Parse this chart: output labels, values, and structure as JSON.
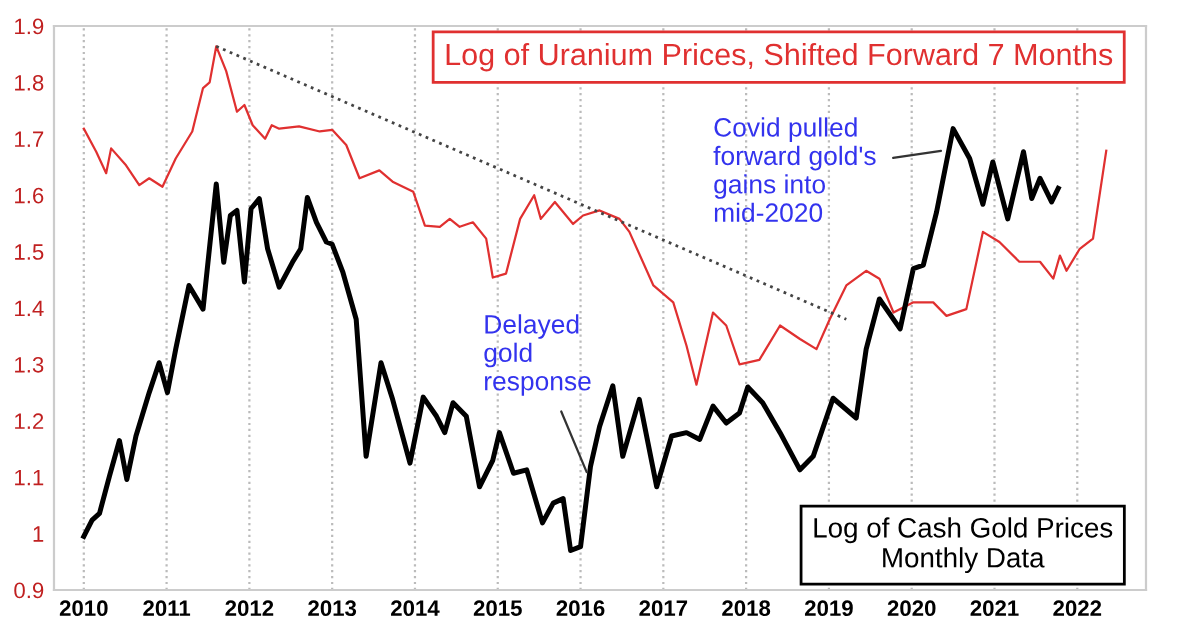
{
  "chart_data": {
    "type": "line",
    "series": [
      {
        "name": "Log of Uranium Prices, Shifted Forward 7 Months",
        "color": "#e03030",
        "x": [
          2010.0,
          2010.15,
          2010.27,
          2010.33,
          2010.51,
          2010.67,
          2010.79,
          2010.95,
          2011.11,
          2011.31,
          2011.44,
          2011.52,
          2011.6,
          2011.72,
          2011.85,
          2011.94,
          2012.04,
          2012.19,
          2012.27,
          2012.36,
          2012.6,
          2012.85,
          2013.0,
          2013.17,
          2013.33,
          2013.57,
          2013.73,
          2013.98,
          2014.12,
          2014.3,
          2014.42,
          2014.54,
          2014.7,
          2014.86,
          2014.94,
          2015.1,
          2015.27,
          2015.44,
          2015.52,
          2015.69,
          2015.91,
          2016.03,
          2016.23,
          2016.47,
          2016.59,
          2016.88,
          2017.12,
          2017.28,
          2017.4,
          2017.6,
          2017.76,
          2017.92,
          2018.16,
          2018.41,
          2018.65,
          2018.85,
          2019.01,
          2019.21,
          2019.45,
          2019.61,
          2019.78,
          2020.02,
          2020.26,
          2020.42,
          2020.66,
          2020.86,
          2021.06,
          2021.3,
          2021.55,
          2021.71,
          2021.79,
          2021.87,
          2022.03,
          2022.19,
          2022.35
        ],
        "values": [
          1.718,
          1.677,
          1.639,
          1.683,
          1.653,
          1.618,
          1.63,
          1.615,
          1.665,
          1.713,
          1.79,
          1.8,
          1.864,
          1.82,
          1.748,
          1.76,
          1.724,
          1.7,
          1.724,
          1.718,
          1.722,
          1.713,
          1.716,
          1.689,
          1.63,
          1.644,
          1.624,
          1.606,
          1.546,
          1.544,
          1.558,
          1.544,
          1.552,
          1.523,
          1.454,
          1.461,
          1.558,
          1.6,
          1.558,
          1.588,
          1.549,
          1.564,
          1.573,
          1.558,
          1.535,
          1.44,
          1.41,
          1.333,
          1.264,
          1.392,
          1.369,
          1.3,
          1.308,
          1.369,
          1.345,
          1.327,
          1.38,
          1.44,
          1.466,
          1.452,
          1.392,
          1.41,
          1.41,
          1.386,
          1.398,
          1.535,
          1.517,
          1.482,
          1.482,
          1.452,
          1.493,
          1.466,
          1.505,
          1.523,
          1.679
        ]
      },
      {
        "name": "Log of Cash Gold Prices",
        "color": "#000000",
        "x": [
          2010.0,
          2010.1,
          2010.19,
          2010.31,
          2010.43,
          2010.52,
          2010.63,
          2010.79,
          2010.91,
          2011.01,
          2011.11,
          2011.27,
          2011.44,
          2011.6,
          2011.69,
          2011.77,
          2011.85,
          2011.94,
          2012.02,
          2012.12,
          2012.22,
          2012.36,
          2012.52,
          2012.62,
          2012.7,
          2012.81,
          2012.93,
          2013.0,
          2013.13,
          2013.29,
          2013.41,
          2013.59,
          2013.73,
          2013.94,
          2014.1,
          2014.26,
          2014.36,
          2014.46,
          2014.62,
          2014.78,
          2014.94,
          2015.02,
          2015.19,
          2015.35,
          2015.54,
          2015.67,
          2015.79,
          2015.88,
          2016.0,
          2016.12,
          2016.23,
          2016.39,
          2016.51,
          2016.71,
          2016.92,
          2017.1,
          2017.28,
          2017.44,
          2017.6,
          2017.76,
          2017.92,
          2018.02,
          2018.2,
          2018.41,
          2018.65,
          2018.81,
          2019.05,
          2019.33,
          2019.45,
          2019.61,
          2019.86,
          2020.02,
          2020.14,
          2020.3,
          2020.5,
          2020.7,
          2020.86,
          2020.98,
          2021.16,
          2021.35,
          2021.45,
          2021.55,
          2021.69,
          2021.77
        ],
        "values": [
          0.995,
          1.024,
          1.036,
          1.102,
          1.165,
          1.096,
          1.173,
          1.25,
          1.303,
          1.25,
          1.327,
          1.44,
          1.398,
          1.62,
          1.481,
          1.564,
          1.573,
          1.446,
          1.576,
          1.594,
          1.505,
          1.437,
          1.481,
          1.505,
          1.596,
          1.552,
          1.517,
          1.513,
          1.463,
          1.38,
          1.137,
          1.303,
          1.238,
          1.125,
          1.242,
          1.208,
          1.179,
          1.232,
          1.208,
          1.083,
          1.13,
          1.179,
          1.107,
          1.113,
          1.019,
          1.054,
          1.062,
          0.97,
          0.977,
          1.119,
          1.19,
          1.262,
          1.137,
          1.238,
          1.083,
          1.173,
          1.179,
          1.167,
          1.226,
          1.196,
          1.214,
          1.26,
          1.232,
          1.179,
          1.113,
          1.137,
          1.24,
          1.205,
          1.327,
          1.416,
          1.363,
          1.47,
          1.476,
          1.57,
          1.718,
          1.665,
          1.584,
          1.659,
          1.558,
          1.677,
          1.594,
          1.63,
          1.588,
          1.612
        ]
      },
      {
        "color": "#444444",
        "line_style": "dotted",
        "x": [
          2011.6,
          2019.21
        ],
        "values": [
          1.864,
          1.38
        ]
      }
    ],
    "xlim": [
      2009.64,
      2022.83
    ],
    "ylim": [
      0.9,
      1.9
    ],
    "xticks": [
      2010,
      2011,
      2012,
      2013,
      2014,
      2015,
      2016,
      2017,
      2018,
      2019,
      2020,
      2021,
      2022
    ],
    "yticks": [
      0.9,
      1,
      1.1,
      1.2,
      1.3,
      1.4,
      1.5,
      1.6,
      1.7,
      1.8,
      1.9
    ],
    "grid": "x",
    "annotations": [
      {
        "text": "Delayed\ngold\nresponse",
        "x": 2016.1,
        "y": 1.1
      },
      {
        "text": "Covid pulled\nforward gold's\ngains into\nmid-2020",
        "x": 2020.42,
        "y": 1.68
      },
      "Monthly Data"
    ]
  }
}
